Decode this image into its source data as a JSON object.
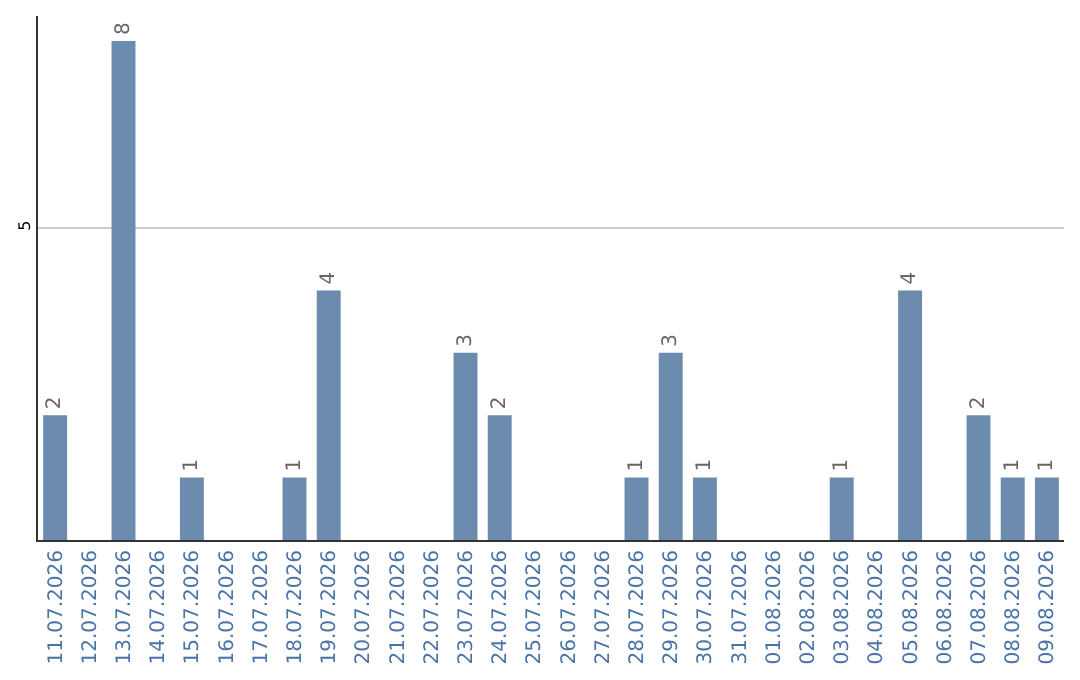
{
  "chart_data": {
    "type": "bar",
    "categories": [
      "11.07.2026",
      "12.07.2026",
      "13.07.2026",
      "14.07.2026",
      "15.07.2026",
      "16.07.2026",
      "17.07.2026",
      "18.07.2026",
      "19.07.2026",
      "20.07.2026",
      "21.07.2026",
      "22.07.2026",
      "23.07.2026",
      "24.07.2026",
      "25.07.2026",
      "26.07.2026",
      "27.07.2026",
      "28.07.2026",
      "29.07.2026",
      "30.07.2026",
      "31.07.2026",
      "01.08.2026",
      "02.08.2026",
      "03.08.2026",
      "04.08.2026",
      "05.08.2026",
      "06.08.2026",
      "07.08.2026",
      "08.08.2026",
      "09.08.2026"
    ],
    "values": [
      2,
      0,
      8,
      0,
      1,
      0,
      0,
      1,
      4,
      0,
      0,
      0,
      3,
      2,
      0,
      0,
      0,
      1,
      3,
      1,
      0,
      0,
      0,
      1,
      0,
      4,
      0,
      2,
      1,
      1
    ],
    "value_labels": [
      "2",
      null,
      "8",
      null,
      "1",
      null,
      null,
      "1",
      "4",
      null,
      null,
      null,
      "3",
      "2",
      null,
      null,
      null,
      "1",
      "3",
      "1",
      null,
      null,
      null,
      "1",
      null,
      "4",
      null,
      "2",
      "1",
      "1"
    ],
    "color": "#6b8cae",
    "ylim": [
      0,
      8.4
    ],
    "yticks": [
      5
    ],
    "grid": "y",
    "legend": false
  }
}
